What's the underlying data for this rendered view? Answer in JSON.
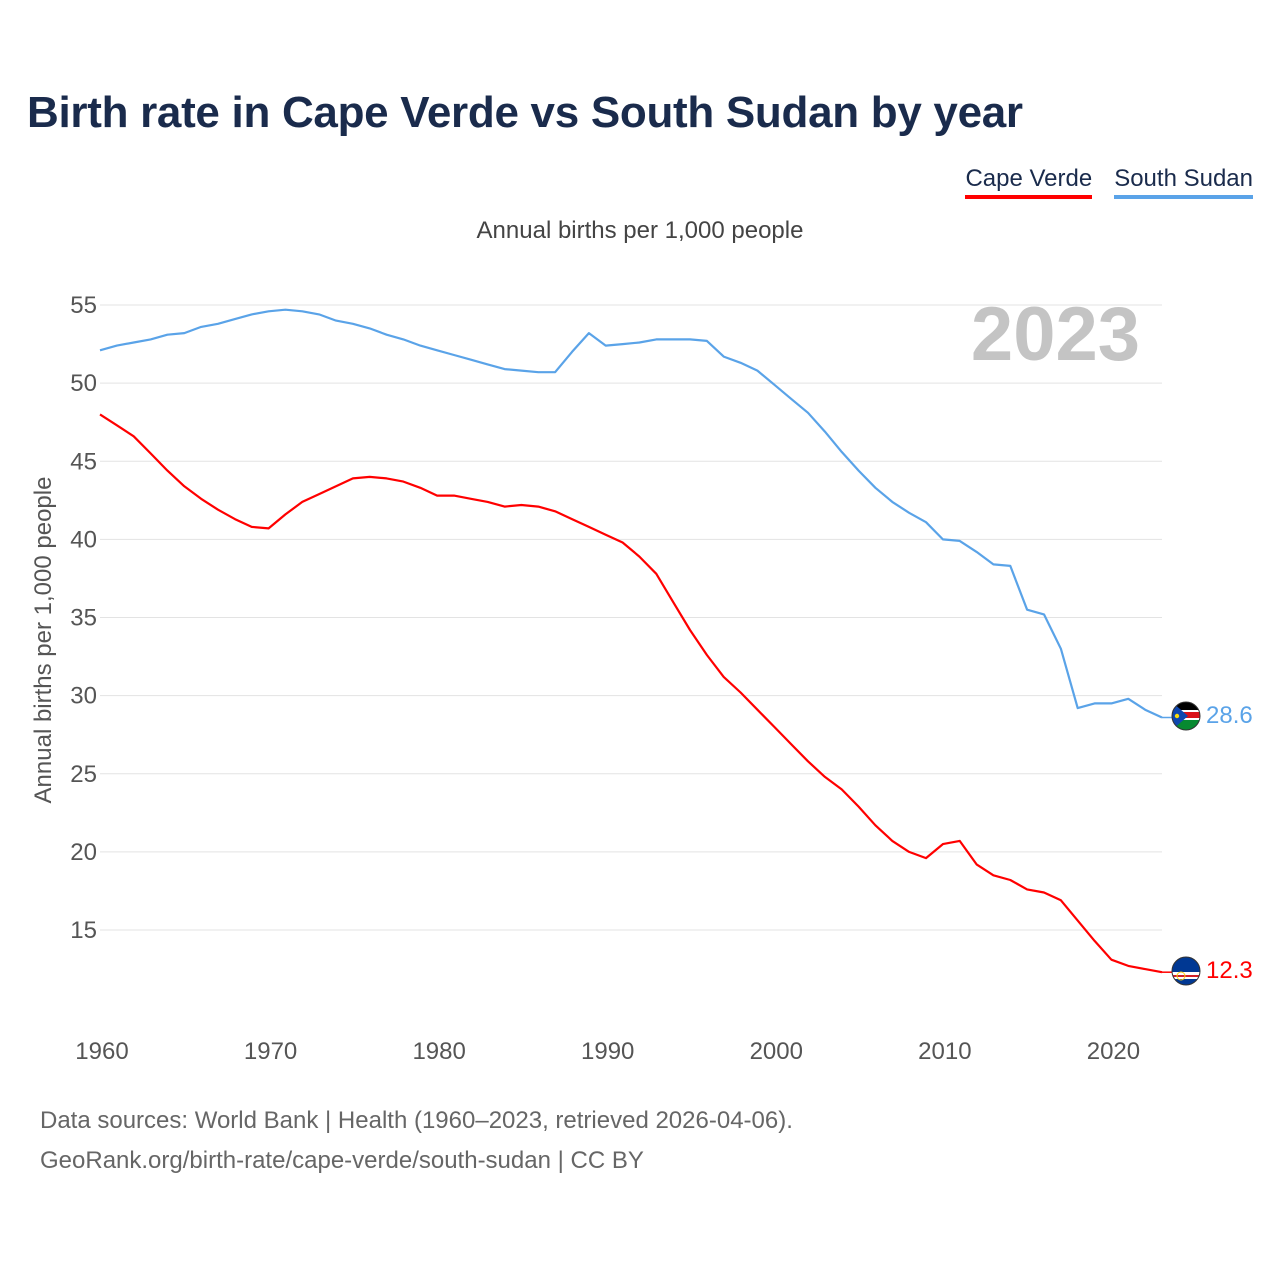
{
  "title": "Birth rate in Cape Verde vs South Sudan by year",
  "subtitle": "Annual births per 1,000 people",
  "legend": [
    {
      "name": "Cape Verde",
      "color": "#ff0000"
    },
    {
      "name": "South Sudan",
      "color": "#5aa3e8"
    }
  ],
  "sources": {
    "line1": "Data sources: World Bank | Health (1960–2023, retrieved 2026-04-06).",
    "line2": "GeoRank.org/birth-rate/cape-verde/south-sudan | CC BY"
  },
  "chart_data": {
    "type": "line",
    "title": "Birth rate in Cape Verde vs South Sudan by year",
    "ylabel": "Annual births per 1,000 people",
    "xlabel": "",
    "year_label": "2023",
    "xlim": [
      1960,
      2023
    ],
    "ylim": [
      10,
      56
    ],
    "xticks": [
      1960,
      1970,
      1980,
      1990,
      2000,
      2010,
      2020
    ],
    "yticks": [
      15,
      20,
      25,
      30,
      35,
      40,
      45,
      50,
      55
    ],
    "grid": true,
    "x": [
      1960,
      1961,
      1962,
      1963,
      1964,
      1965,
      1966,
      1967,
      1968,
      1969,
      1970,
      1971,
      1972,
      1973,
      1974,
      1975,
      1976,
      1977,
      1978,
      1979,
      1980,
      1981,
      1982,
      1983,
      1984,
      1985,
      1986,
      1987,
      1988,
      1989,
      1990,
      1991,
      1992,
      1993,
      1994,
      1995,
      1996,
      1997,
      1998,
      1999,
      2000,
      2001,
      2002,
      2003,
      2004,
      2005,
      2006,
      2007,
      2008,
      2009,
      2010,
      2011,
      2012,
      2013,
      2014,
      2015,
      2016,
      2017,
      2018,
      2019,
      2020,
      2021,
      2022,
      2023
    ],
    "series": [
      {
        "name": "Cape Verde",
        "color": "#ff0000",
        "end_label": "12.3",
        "values": [
          48.0,
          47.3,
          46.6,
          45.5,
          44.4,
          43.4,
          42.6,
          41.9,
          41.3,
          40.8,
          40.7,
          41.6,
          42.4,
          42.9,
          43.4,
          43.9,
          44.0,
          43.9,
          43.7,
          43.3,
          42.8,
          42.8,
          42.6,
          42.4,
          42.1,
          42.2,
          42.1,
          41.8,
          41.3,
          40.8,
          40.3,
          39.8,
          38.9,
          37.8,
          36.0,
          34.2,
          32.6,
          31.2,
          30.2,
          29.1,
          28.0,
          26.9,
          25.8,
          24.8,
          24.0,
          22.9,
          21.7,
          20.7,
          20.0,
          19.6,
          20.5,
          20.7,
          19.2,
          18.5,
          18.2,
          17.6,
          17.4,
          16.9,
          15.6,
          14.3,
          13.1,
          12.7,
          12.5,
          12.3
        ]
      },
      {
        "name": "South Sudan",
        "color": "#5aa3e8",
        "end_label": "28.6",
        "values": [
          52.1,
          52.4,
          52.6,
          52.8,
          53.1,
          53.2,
          53.6,
          53.8,
          54.1,
          54.4,
          54.6,
          54.7,
          54.6,
          54.4,
          54.0,
          53.8,
          53.5,
          53.1,
          52.8,
          52.4,
          52.1,
          51.8,
          51.5,
          51.2,
          50.9,
          50.8,
          50.7,
          50.7,
          52.0,
          53.2,
          52.4,
          52.5,
          52.6,
          52.8,
          52.8,
          52.8,
          52.7,
          51.7,
          51.3,
          50.8,
          49.9,
          49.0,
          48.1,
          46.9,
          45.6,
          44.4,
          43.3,
          42.4,
          41.7,
          41.1,
          40.0,
          39.9,
          39.2,
          38.4,
          38.3,
          35.5,
          35.2,
          33.0,
          29.2,
          29.5,
          29.5,
          29.8,
          29.1,
          28.6
        ]
      }
    ]
  }
}
